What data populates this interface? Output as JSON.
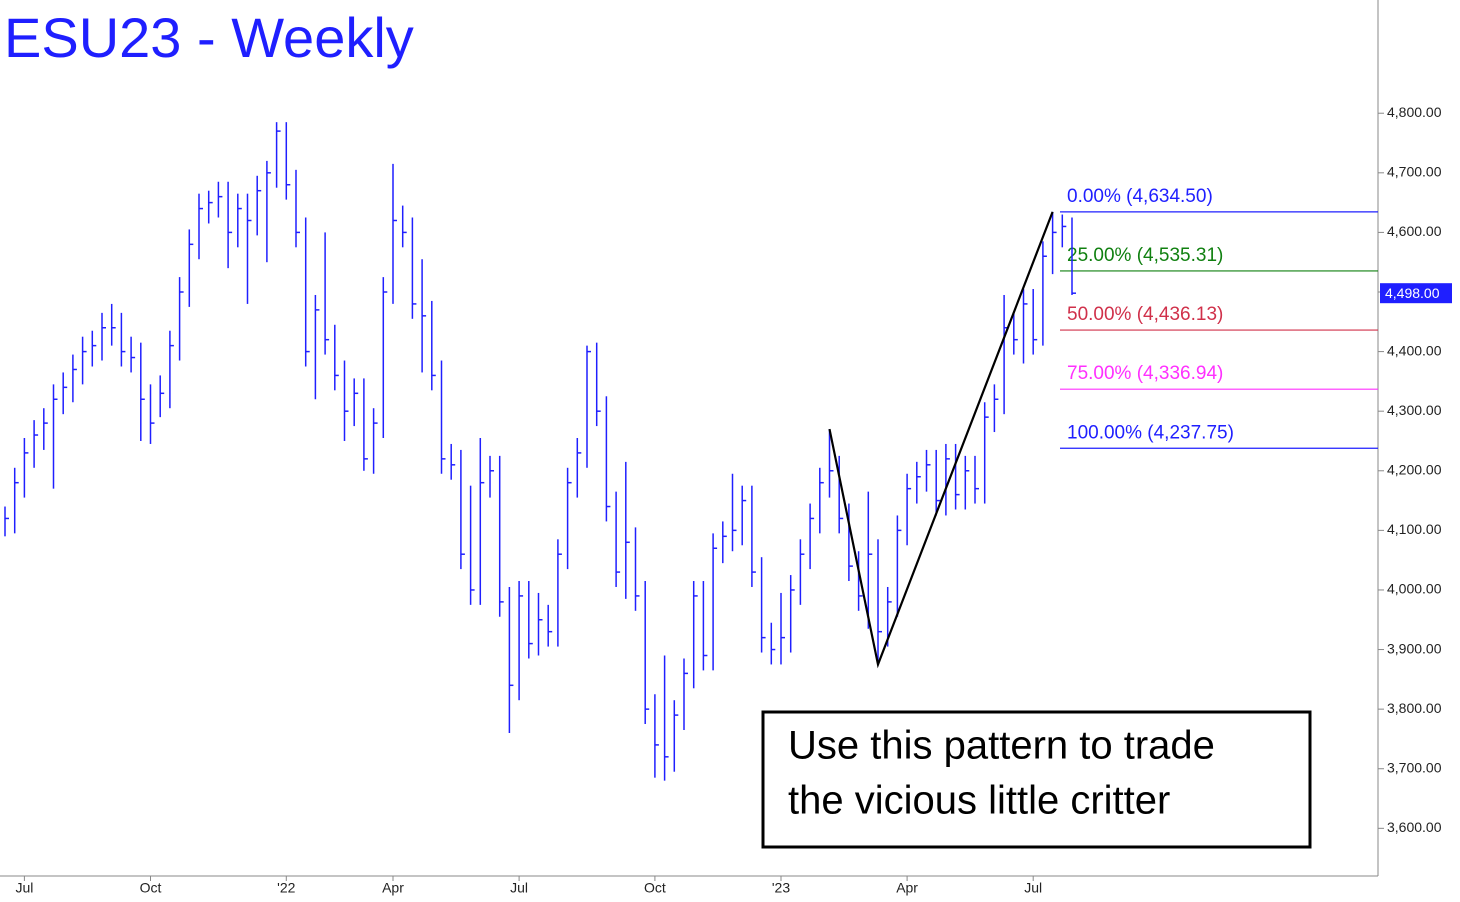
{
  "chart_data": {
    "type": "ohlc",
    "title": "ESU23 - Weekly",
    "color": "#1f1fff",
    "categories": [
      null,
      null,
      "Jul",
      null,
      null,
      null,
      null,
      null,
      null,
      null,
      null,
      null,
      null,
      null,
      null,
      "Oct",
      null,
      null,
      null,
      null,
      null,
      null,
      null,
      null,
      null,
      null,
      null,
      null,
      null,
      "'22",
      null,
      null,
      null,
      null,
      null,
      null,
      null,
      null,
      null,
      null,
      "Apr",
      null,
      null,
      null,
      null,
      null,
      null,
      null,
      null,
      null,
      null,
      null,
      null,
      "Jul",
      null,
      null,
      null,
      null,
      null,
      null,
      null,
      null,
      null,
      null,
      null,
      null,
      null,
      "Oct",
      null,
      null,
      null,
      null,
      null,
      null,
      null,
      null,
      null,
      null,
      null,
      null,
      "'23",
      null,
      null,
      null,
      null,
      null,
      null,
      null,
      null,
      null,
      null,
      null,
      null,
      "Apr",
      null,
      null,
      null,
      null,
      null,
      null,
      null,
      null,
      null,
      null,
      null,
      null,
      "Jul",
      null,
      null,
      null,
      null
    ],
    "high": [
      4140,
      4205,
      4255,
      4285,
      4305,
      4345,
      4365,
      4395,
      4425,
      4435,
      4465,
      4480,
      4465,
      4425,
      4415,
      4345,
      4360,
      4435,
      4525,
      4605,
      4665,
      4670,
      4685,
      4685,
      4665,
      4665,
      4695,
      4720,
      4785,
      4785,
      4705,
      4625,
      4495,
      4600,
      4445,
      4385,
      4355,
      4355,
      4305,
      4525,
      4715,
      4645,
      4625,
      4555,
      4485,
      4385,
      4245,
      4235,
      4175,
      4255,
      4225,
      4225,
      4005,
      4015,
      4015,
      3995,
      3975,
      4085,
      4205,
      4255,
      4410,
      4415,
      4325,
      4165,
      4215,
      4105,
      4015,
      3825,
      3890,
      3815,
      3885,
      4015,
      4015,
      4095,
      4115,
      4195,
      4175,
      4175,
      4055,
      3945,
      3995,
      4025,
      4085,
      4145,
      4205,
      4270,
      4225,
      4145,
      4065,
      4165,
      4085,
      4005,
      4125,
      4195,
      4215,
      4235,
      4235,
      4245,
      4245,
      4225,
      4225,
      4315,
      4345,
      4495,
      4465,
      4505,
      4505,
      4585,
      4634.5,
      4630,
      4625
    ],
    "low": [
      4090,
      4095,
      4155,
      4205,
      4235,
      4170,
      4295,
      4315,
      4345,
      4375,
      4385,
      4410,
      4375,
      4365,
      4250,
      4245,
      4290,
      4305,
      4385,
      4475,
      4555,
      4615,
      4625,
      4540,
      4575,
      4480,
      4595,
      4550,
      4675,
      4655,
      4575,
      4375,
      4320,
      4395,
      4335,
      4250,
      4275,
      4200,
      4195,
      4255,
      4480,
      4575,
      4455,
      4365,
      4335,
      4195,
      4185,
      4035,
      3975,
      3975,
      4155,
      3955,
      3760,
      3815,
      3885,
      3890,
      3905,
      3905,
      4035,
      4155,
      4205,
      4275,
      4115,
      4005,
      3985,
      3965,
      3775,
      3685,
      3680,
      3695,
      3765,
      3835,
      3865,
      3865,
      4045,
      4065,
      4075,
      4005,
      3895,
      3875,
      3875,
      3895,
      3975,
      4035,
      4095,
      4155,
      4095,
      4015,
      3965,
      3935,
      3875,
      3905,
      3955,
      4075,
      4145,
      4165,
      4125,
      4125,
      4135,
      4135,
      4145,
      4145,
      4265,
      4295,
      4395,
      4380,
      4395,
      4410,
      4530,
      4575,
      4495
    ],
    "close": [
      4120,
      4180,
      4230,
      4260,
      4280,
      4320,
      4340,
      4370,
      4400,
      4410,
      4440,
      4440,
      4400,
      4390,
      4320,
      4280,
      4330,
      4410,
      4500,
      4580,
      4640,
      4650,
      4660,
      4600,
      4640,
      4620,
      4670,
      4700,
      4770,
      4680,
      4600,
      4400,
      4470,
      4420,
      4360,
      4300,
      4330,
      4220,
      4280,
      4500,
      4620,
      4600,
      4480,
      4460,
      4360,
      4220,
      4210,
      4060,
      4000,
      4180,
      4200,
      3980,
      3840,
      3990,
      3910,
      3950,
      3930,
      4060,
      4180,
      4230,
      4400,
      4300,
      4140,
      4030,
      4080,
      3990,
      3800,
      3740,
      3720,
      3790,
      3860,
      3990,
      3890,
      4070,
      4090,
      4100,
      4150,
      4030,
      3920,
      3900,
      3920,
      4000,
      4060,
      4120,
      4180,
      4200,
      4120,
      4040,
      3990,
      4060,
      3930,
      3980,
      4100,
      4170,
      4190,
      4210,
      4150,
      4220,
      4160,
      4200,
      4170,
      4290,
      4320,
      4440,
      4420,
      4480,
      4420,
      4560,
      4600,
      4610,
      4498
    ],
    "ylim": [
      3520,
      4990
    ],
    "yticks": [
      {
        "value": 3600,
        "label": "3,600.00"
      },
      {
        "value": 3700,
        "label": "3,700.00"
      },
      {
        "value": 3800,
        "label": "3,800.00"
      },
      {
        "value": 3900,
        "label": "3,900.00"
      },
      {
        "value": 4000,
        "label": "4,000.00"
      },
      {
        "value": 4100,
        "label": "4,100.00"
      },
      {
        "value": 4200,
        "label": "4,200.00"
      },
      {
        "value": 4300,
        "label": "4,300.00"
      },
      {
        "value": 4400,
        "label": "4,400.00"
      },
      {
        "value": 4500,
        "label": "4,500.00"
      },
      {
        "value": 4600,
        "label": "4,600.00"
      },
      {
        "value": 4700,
        "label": "4,700.00"
      },
      {
        "value": 4800,
        "label": "4,800.00"
      }
    ],
    "last_price": {
      "value": 4498,
      "label": "4,498.00"
    },
    "pattern": {
      "x": [
        85,
        90,
        108
      ],
      "values": [
        4270,
        3875,
        4634.5
      ],
      "color": "#000000"
    },
    "levels": {
      "values": [
        4634.5,
        4535.31,
        4436.13,
        4336.94,
        4237.75
      ],
      "value_labels": [
        "0.00% (4,634.50)",
        "25.00% (4,535.31)",
        "50.00% (4,436.13)",
        "75.00% (4,336.94)",
        "100.00% (4,237.75)"
      ],
      "colors": [
        "#1f1fff",
        "#108010",
        "#d0304a",
        "#ff30ff",
        "#1f1fff"
      ]
    },
    "annotation": [
      "Use this pattern to trade",
      "the vicious little critter"
    ]
  }
}
